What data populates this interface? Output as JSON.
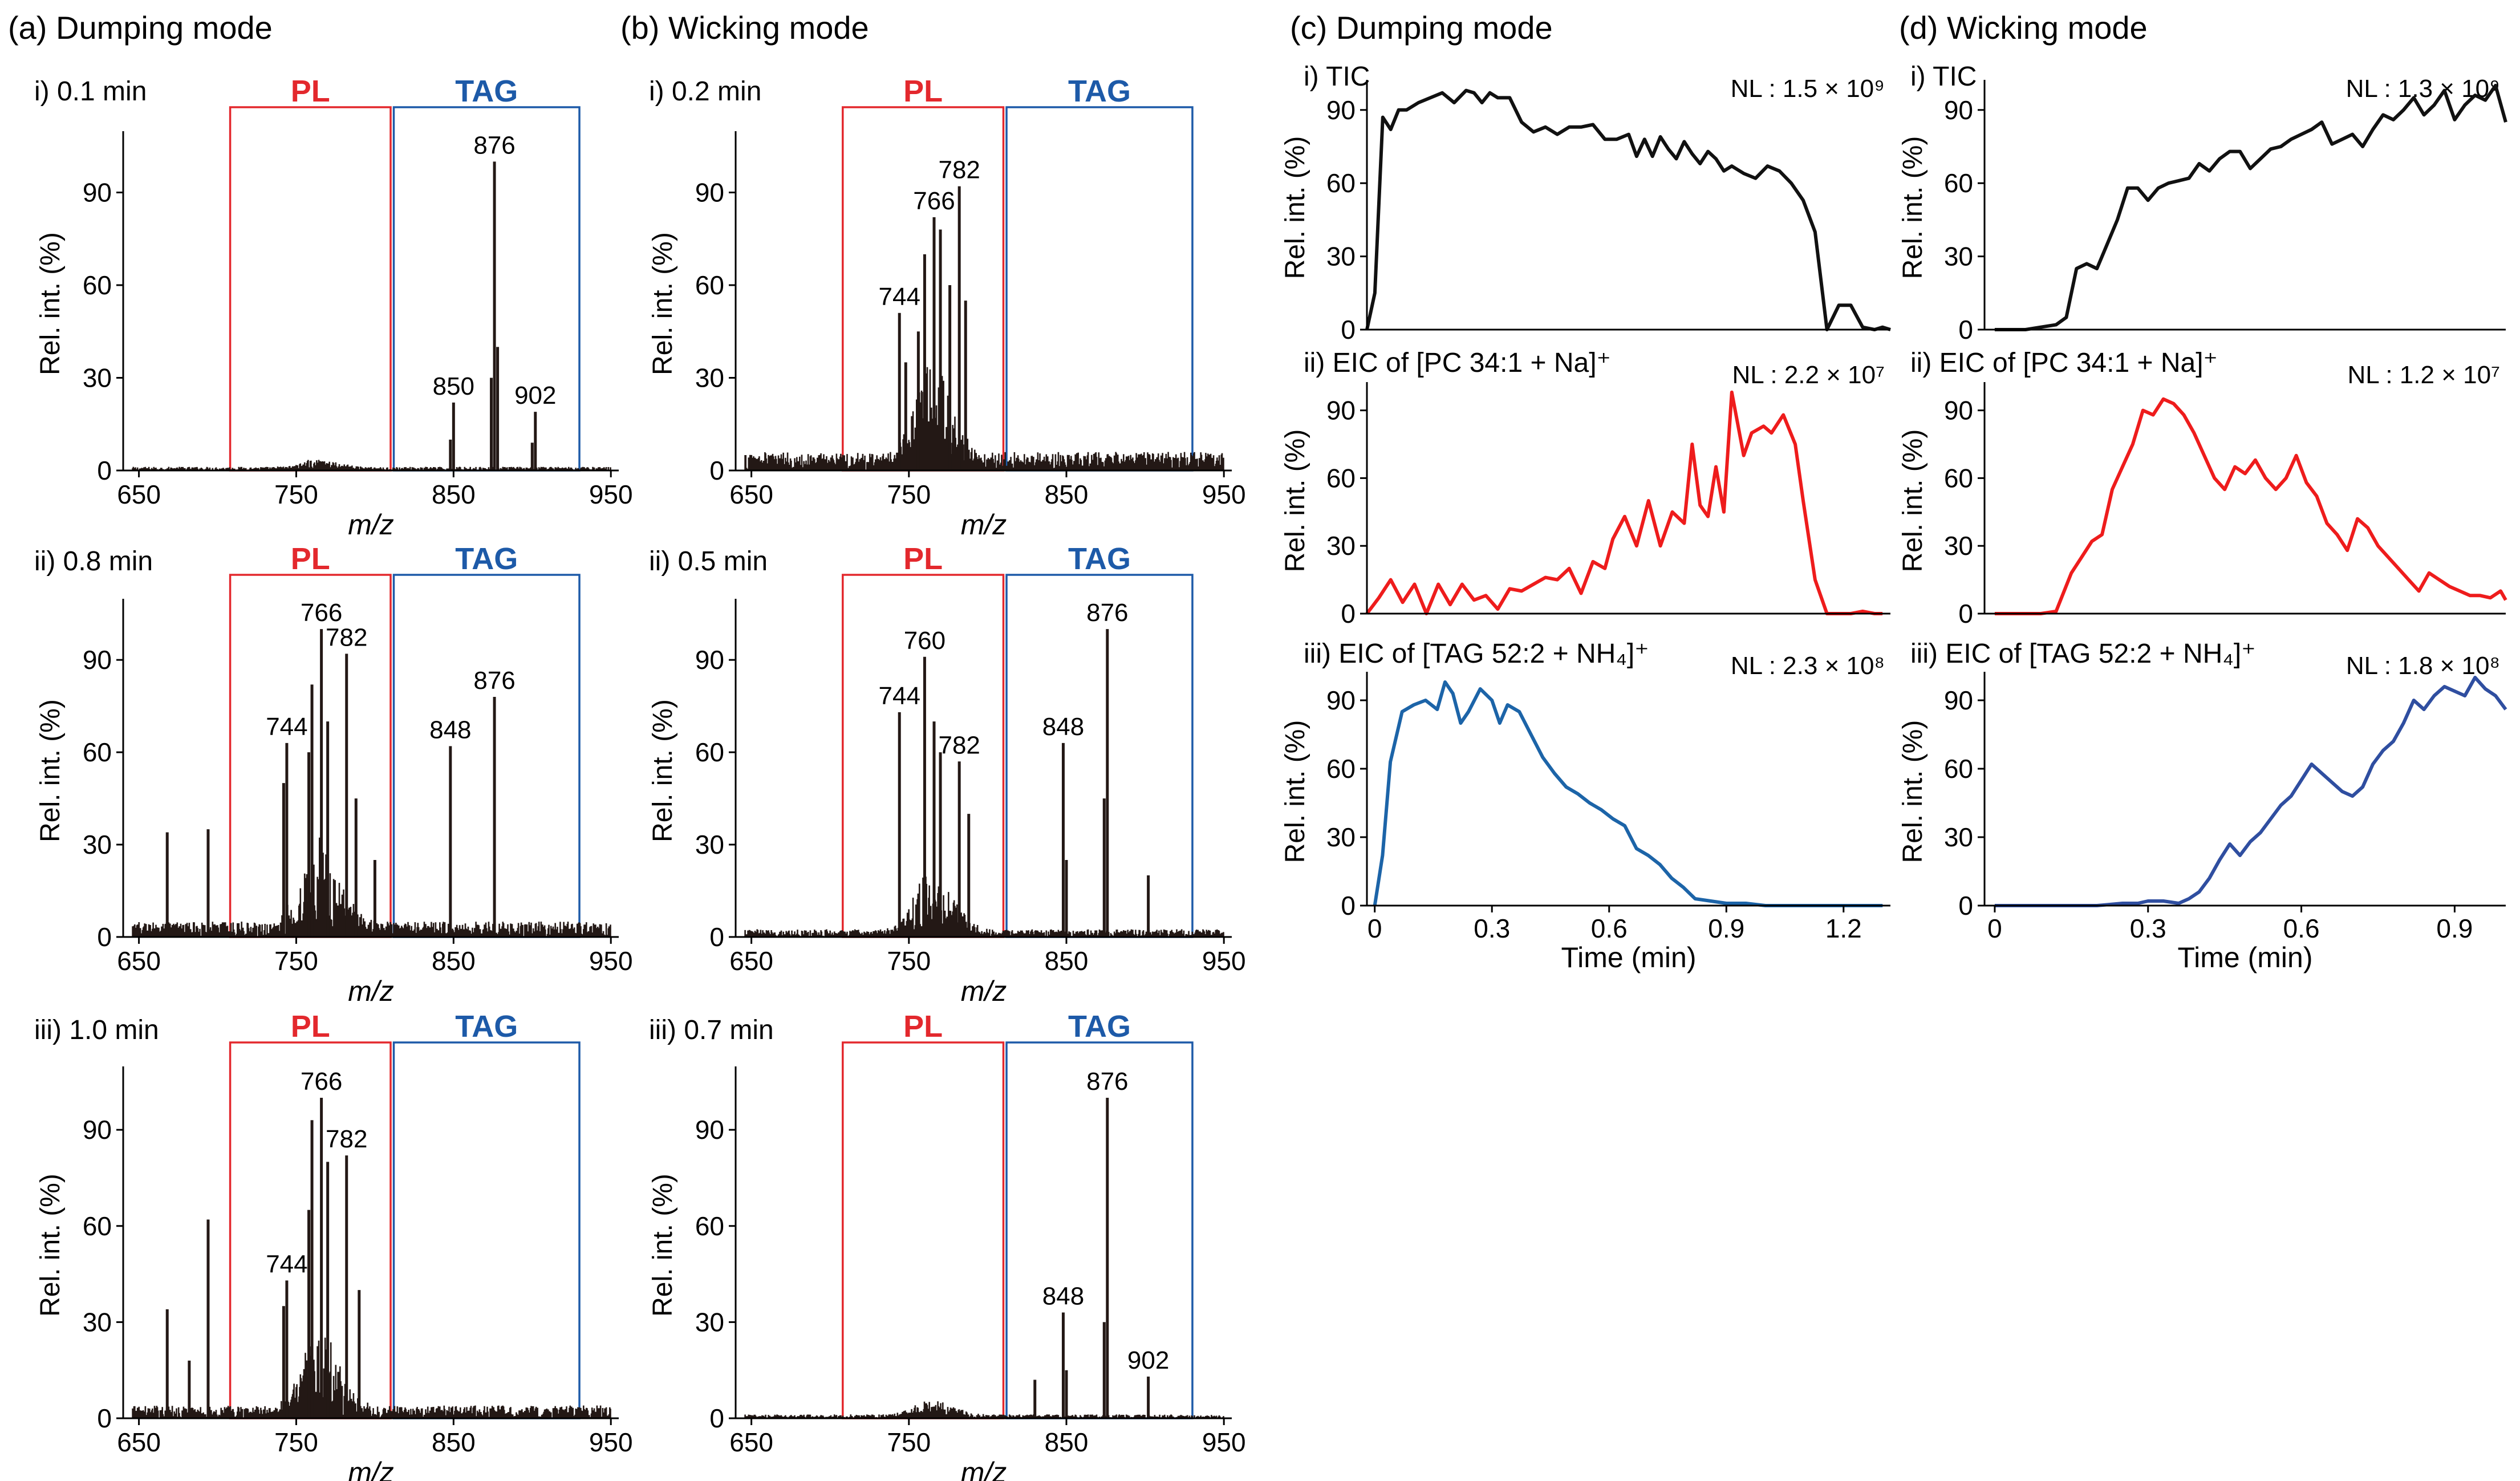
{
  "colors": {
    "spectrum": "#231815",
    "pl": "#e3282d",
    "tag": "#1d5aa8",
    "tic": "#111111",
    "eic_pc": "#ee1c1c",
    "eic_tag_dumping": "#1c64a8",
    "eic_tag_wicking": "#2f4ea0",
    "axis": "#000000"
  },
  "sections": [
    {
      "label": "(a) Dumping mode"
    },
    {
      "label": "(b) Wicking mode"
    },
    {
      "label": "(c) Dumping mode"
    },
    {
      "label": "(d) Wicking mode"
    }
  ],
  "spectra_axes": {
    "xlabel": "m/z",
    "ylabel": "Rel. int. (%)",
    "xlim": [
      640,
      955
    ],
    "ylim": [
      0,
      108
    ],
    "xticks": [
      650,
      750,
      850,
      950
    ],
    "yticks": [
      0,
      30,
      60,
      90
    ],
    "pl_box": {
      "label": "PL",
      "range": [
        708,
        810
      ]
    },
    "tag_box": {
      "label": "TAG",
      "range": [
        812,
        930
      ]
    }
  },
  "chart_data": [
    {
      "id": "a1",
      "type": "bar",
      "title": "i) 0.1 min",
      "xlabel": "m/z",
      "ylabel": "Rel. int. (%)",
      "noise": 1.2,
      "pl_boost": 3,
      "peaks": [
        {
          "x": 850,
          "y": 22,
          "label": "850"
        },
        {
          "x": 876,
          "y": 100,
          "label": "876"
        },
        {
          "x": 902,
          "y": 19,
          "label": "902"
        },
        {
          "x": 848,
          "y": 10,
          "label": null
        },
        {
          "x": 874,
          "y": 30,
          "label": null
        },
        {
          "x": 878,
          "y": 40,
          "label": null
        },
        {
          "x": 900,
          "y": 9,
          "label": null
        }
      ]
    },
    {
      "id": "a2",
      "type": "bar",
      "title": "ii) 0.8 min",
      "xlabel": "m/z",
      "ylabel": "Rel. int. (%)",
      "noise": 5,
      "pl_boost": 28,
      "peaks": [
        {
          "x": 744,
          "y": 63,
          "label": "744"
        },
        {
          "x": 766,
          "y": 100,
          "label": "766"
        },
        {
          "x": 782,
          "y": 92,
          "label": "782"
        },
        {
          "x": 848,
          "y": 62,
          "label": "848"
        },
        {
          "x": 876,
          "y": 78,
          "label": "876"
        },
        {
          "x": 668,
          "y": 34,
          "label": null
        },
        {
          "x": 694,
          "y": 35,
          "label": null
        },
        {
          "x": 760,
          "y": 82,
          "label": null
        },
        {
          "x": 770,
          "y": 70,
          "label": null
        },
        {
          "x": 758,
          "y": 60,
          "label": null
        },
        {
          "x": 788,
          "y": 45,
          "label": null
        },
        {
          "x": 742,
          "y": 50,
          "label": null
        },
        {
          "x": 800,
          "y": 25,
          "label": null
        }
      ]
    },
    {
      "id": "a3",
      "type": "bar",
      "title": "iii) 1.0 min",
      "xlabel": "m/z",
      "ylabel": "Rel. int. (%)",
      "noise": 4,
      "pl_boost": 24,
      "peaks": [
        {
          "x": 744,
          "y": 43,
          "label": "744"
        },
        {
          "x": 766,
          "y": 100,
          "label": "766"
        },
        {
          "x": 782,
          "y": 82,
          "label": "782"
        },
        {
          "x": 668,
          "y": 34,
          "label": null
        },
        {
          "x": 694,
          "y": 62,
          "label": null
        },
        {
          "x": 760,
          "y": 93,
          "label": null
        },
        {
          "x": 770,
          "y": 80,
          "label": null
        },
        {
          "x": 758,
          "y": 65,
          "label": null
        },
        {
          "x": 790,
          "y": 40,
          "label": null
        },
        {
          "x": 742,
          "y": 35,
          "label": null
        },
        {
          "x": 682,
          "y": 18,
          "label": null
        }
      ]
    },
    {
      "id": "b1",
      "type": "bar",
      "title": "i) 0.2 min",
      "xlabel": "m/z",
      "ylabel": "Rel. int. (%)",
      "noise": 6,
      "pl_boost": 32,
      "peaks": [
        {
          "x": 744,
          "y": 51,
          "label": "744"
        },
        {
          "x": 766,
          "y": 82,
          "label": "766"
        },
        {
          "x": 782,
          "y": 92,
          "label": "782"
        },
        {
          "x": 760,
          "y": 70,
          "label": null
        },
        {
          "x": 770,
          "y": 78,
          "label": null
        },
        {
          "x": 776,
          "y": 60,
          "label": null
        },
        {
          "x": 786,
          "y": 55,
          "label": null
        },
        {
          "x": 756,
          "y": 45,
          "label": null
        },
        {
          "x": 748,
          "y": 35,
          "label": null
        }
      ]
    },
    {
      "id": "b2",
      "type": "bar",
      "title": "ii) 0.5 min",
      "xlabel": "m/z",
      "ylabel": "Rel. int. (%)",
      "noise": 2.5,
      "pl_boost": 22,
      "peaks": [
        {
          "x": 744,
          "y": 73,
          "label": "744"
        },
        {
          "x": 760,
          "y": 91,
          "label": "760"
        },
        {
          "x": 782,
          "y": 57,
          "label": "782"
        },
        {
          "x": 848,
          "y": 63,
          "label": "848"
        },
        {
          "x": 876,
          "y": 100,
          "label": "876"
        },
        {
          "x": 766,
          "y": 70,
          "label": null
        },
        {
          "x": 770,
          "y": 60,
          "label": null
        },
        {
          "x": 788,
          "y": 40,
          "label": null
        },
        {
          "x": 874,
          "y": 45,
          "label": null
        },
        {
          "x": 850,
          "y": 25,
          "label": null
        },
        {
          "x": 902,
          "y": 20,
          "label": null
        }
      ]
    },
    {
      "id": "b3",
      "type": "bar",
      "title": "iii) 0.7 min",
      "xlabel": "m/z",
      "ylabel": "Rel. int. (%)",
      "noise": 1.2,
      "pl_boost": 5,
      "peaks": [
        {
          "x": 848,
          "y": 33,
          "label": "848"
        },
        {
          "x": 876,
          "y": 100,
          "label": "876"
        },
        {
          "x": 902,
          "y": 13,
          "label": "902"
        },
        {
          "x": 850,
          "y": 15,
          "label": null
        },
        {
          "x": 874,
          "y": 30,
          "label": null
        },
        {
          "x": 830,
          "y": 12,
          "label": null
        }
      ]
    },
    {
      "id": "c1",
      "type": "line",
      "title": "i) TIC",
      "nl": "NL : 1.5 × 10⁹",
      "xlabel": "",
      "ylabel": "Rel. int. (%)",
      "colorKey": "tic",
      "xlim": [
        0,
        1.32
      ],
      "xticks": [],
      "x": [
        0,
        0.02,
        0.04,
        0.06,
        0.08,
        0.1,
        0.13,
        0.16,
        0.19,
        0.22,
        0.25,
        0.27,
        0.29,
        0.31,
        0.33,
        0.36,
        0.39,
        0.42,
        0.45,
        0.48,
        0.51,
        0.54,
        0.57,
        0.6,
        0.63,
        0.66,
        0.68,
        0.7,
        0.72,
        0.74,
        0.76,
        0.78,
        0.8,
        0.82,
        0.84,
        0.86,
        0.88,
        0.9,
        0.92,
        0.95,
        0.98,
        1.01,
        1.04,
        1.07,
        1.1,
        1.13,
        1.16,
        1.19,
        1.22,
        1.25,
        1.28,
        1.3,
        1.32
      ],
      "y": [
        0,
        15,
        87,
        82,
        90,
        90,
        93,
        95,
        97,
        93,
        98,
        97,
        93,
        97,
        95,
        95,
        85,
        81,
        83,
        80,
        83,
        83,
        84,
        78,
        78,
        80,
        71,
        78,
        71,
        79,
        74,
        70,
        77,
        72,
        68,
        73,
        70,
        65,
        67,
        64,
        62,
        67,
        65,
        60,
        53,
        40,
        0,
        10,
        10,
        1,
        0,
        1,
        0
      ]
    },
    {
      "id": "c2",
      "type": "line",
      "title": "ii) EIC of [PC 34:1 + Na]⁺",
      "nl": "NL : 2.2 × 10⁷",
      "xlabel": "",
      "ylabel": "Rel. int. (%)",
      "colorKey": "eic_pc",
      "xlim": [
        0,
        1.32
      ],
      "xticks": [],
      "x": [
        0,
        0.03,
        0.06,
        0.09,
        0.12,
        0.15,
        0.18,
        0.21,
        0.24,
        0.27,
        0.3,
        0.33,
        0.36,
        0.39,
        0.42,
        0.45,
        0.48,
        0.51,
        0.54,
        0.57,
        0.6,
        0.62,
        0.65,
        0.68,
        0.71,
        0.74,
        0.77,
        0.8,
        0.82,
        0.84,
        0.86,
        0.88,
        0.9,
        0.92,
        0.95,
        0.97,
        1.0,
        1.02,
        1.05,
        1.08,
        1.1,
        1.13,
        1.16,
        1.19,
        1.22,
        1.25,
        1.28,
        1.3
      ],
      "y": [
        0,
        7,
        15,
        5,
        13,
        0,
        13,
        4,
        13,
        6,
        8,
        2,
        11,
        10,
        13,
        16,
        15,
        20,
        9,
        23,
        20,
        33,
        43,
        30,
        50,
        30,
        45,
        40,
        75,
        48,
        43,
        65,
        45,
        98,
        70,
        80,
        83,
        80,
        88,
        75,
        50,
        15,
        0,
        0,
        0,
        1,
        0,
        0
      ]
    },
    {
      "id": "c3",
      "type": "line",
      "title": "iii) EIC of [TAG 52:2 + NH₄]⁺",
      "nl": "NL : 2.3 × 10⁸",
      "xlabel": "Time (min)",
      "ylabel": "Rel. int. (%)",
      "colorKey": "eic_tag_dumping",
      "xlim": [
        -0.02,
        1.32
      ],
      "xticks": [
        0,
        0.3,
        0.6,
        0.9,
        1.2
      ],
      "xticklabels": [
        "0",
        "0.3",
        "0.6",
        "0.9",
        "1.2"
      ],
      "x": [
        0,
        0.02,
        0.04,
        0.07,
        0.1,
        0.13,
        0.16,
        0.18,
        0.2,
        0.22,
        0.24,
        0.27,
        0.3,
        0.32,
        0.34,
        0.37,
        0.4,
        0.43,
        0.46,
        0.49,
        0.52,
        0.55,
        0.58,
        0.61,
        0.64,
        0.67,
        0.7,
        0.73,
        0.76,
        0.79,
        0.82,
        0.86,
        0.9,
        0.95,
        1.0,
        1.05,
        1.1,
        1.15,
        1.2,
        1.25,
        1.3
      ],
      "y": [
        0,
        22,
        63,
        85,
        88,
        90,
        86,
        98,
        93,
        80,
        85,
        95,
        90,
        80,
        88,
        85,
        75,
        65,
        58,
        52,
        49,
        45,
        42,
        38,
        35,
        25,
        22,
        18,
        12,
        8,
        3,
        2,
        1,
        1,
        0,
        0,
        0,
        0,
        0,
        0,
        0
      ]
    },
    {
      "id": "d1",
      "type": "line",
      "title": "i) TIC",
      "nl": "NL : 1.3 × 10⁹",
      "xlabel": "",
      "ylabel": "Rel. int. (%)",
      "colorKey": "tic",
      "xlim": [
        -0.02,
        1.0
      ],
      "xticks": [],
      "x": [
        0,
        0.03,
        0.06,
        0.09,
        0.12,
        0.14,
        0.16,
        0.18,
        0.2,
        0.22,
        0.24,
        0.26,
        0.28,
        0.3,
        0.32,
        0.34,
        0.36,
        0.38,
        0.4,
        0.42,
        0.44,
        0.46,
        0.48,
        0.5,
        0.52,
        0.54,
        0.56,
        0.58,
        0.6,
        0.62,
        0.64,
        0.66,
        0.68,
        0.7,
        0.72,
        0.74,
        0.76,
        0.78,
        0.8,
        0.82,
        0.84,
        0.86,
        0.88,
        0.9,
        0.92,
        0.94,
        0.96,
        0.98,
        1.0
      ],
      "y": [
        0,
        0,
        0,
        1,
        2,
        5,
        25,
        27,
        25,
        35,
        45,
        58,
        58,
        53,
        58,
        60,
        61,
        62,
        68,
        65,
        70,
        73,
        73,
        66,
        70,
        74,
        75,
        78,
        80,
        82,
        85,
        76,
        78,
        80,
        75,
        82,
        88,
        86,
        90,
        95,
        88,
        92,
        98,
        86,
        92,
        96,
        94,
        100,
        85
      ]
    },
    {
      "id": "d2",
      "type": "line",
      "title": "ii) EIC of [PC 34:1 + Na]⁺",
      "nl": "NL : 1.2 × 10⁷",
      "xlabel": "",
      "ylabel": "Rel. int. (%)",
      "colorKey": "eic_pc",
      "xlim": [
        -0.02,
        1.0
      ],
      "xticks": [],
      "x": [
        0,
        0.03,
        0.06,
        0.09,
        0.12,
        0.15,
        0.17,
        0.19,
        0.21,
        0.23,
        0.25,
        0.27,
        0.29,
        0.31,
        0.33,
        0.35,
        0.37,
        0.39,
        0.41,
        0.43,
        0.45,
        0.47,
        0.49,
        0.51,
        0.53,
        0.55,
        0.57,
        0.59,
        0.61,
        0.63,
        0.65,
        0.67,
        0.69,
        0.71,
        0.73,
        0.75,
        0.77,
        0.79,
        0.81,
        0.83,
        0.85,
        0.87,
        0.89,
        0.91,
        0.93,
        0.95,
        0.97,
        0.99,
        1.0
      ],
      "y": [
        0,
        0,
        0,
        0,
        1,
        18,
        25,
        32,
        35,
        55,
        65,
        75,
        90,
        88,
        95,
        93,
        88,
        80,
        70,
        60,
        55,
        65,
        62,
        68,
        60,
        55,
        60,
        70,
        58,
        52,
        40,
        35,
        28,
        42,
        38,
        30,
        25,
        20,
        15,
        10,
        18,
        15,
        12,
        10,
        8,
        8,
        7,
        10,
        6
      ]
    },
    {
      "id": "d3",
      "type": "line",
      "title": "iii) EIC of [TAG 52:2 + NH₄]⁺",
      "nl": "NL : 1.8 × 10⁸",
      "xlabel": "Time (min)",
      "ylabel": "Rel. int. (%)",
      "colorKey": "eic_tag_wicking",
      "xlim": [
        -0.02,
        1.0
      ],
      "xticks": [
        0,
        0.3,
        0.6,
        0.9
      ],
      "xticklabels": [
        "0",
        "0.3",
        "0.6",
        "0.9"
      ],
      "x": [
        0,
        0.05,
        0.1,
        0.15,
        0.2,
        0.25,
        0.28,
        0.3,
        0.33,
        0.36,
        0.38,
        0.4,
        0.42,
        0.44,
        0.46,
        0.48,
        0.5,
        0.52,
        0.54,
        0.56,
        0.58,
        0.6,
        0.62,
        0.64,
        0.66,
        0.68,
        0.7,
        0.72,
        0.74,
        0.76,
        0.78,
        0.8,
        0.82,
        0.84,
        0.86,
        0.88,
        0.9,
        0.92,
        0.94,
        0.96,
        0.98,
        1.0
      ],
      "y": [
        0,
        0,
        0,
        0,
        0,
        1,
        1,
        2,
        2,
        1,
        3,
        6,
        12,
        20,
        27,
        22,
        28,
        32,
        38,
        44,
        48,
        55,
        62,
        58,
        54,
        50,
        48,
        52,
        62,
        68,
        72,
        80,
        90,
        86,
        92,
        96,
        94,
        92,
        100,
        95,
        92,
        86
      ]
    }
  ],
  "axis_labels": {
    "rel_int": "Rel. int. (%)",
    "time": "Time (min)",
    "mz": "m/z"
  }
}
